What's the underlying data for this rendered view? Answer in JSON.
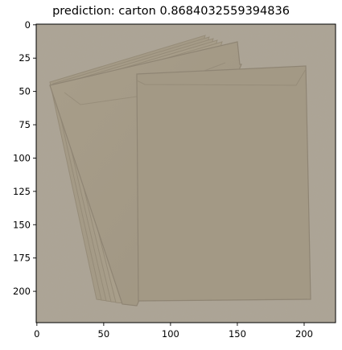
{
  "figure": {
    "title": "prediction: carton 0.8684032559394836",
    "prediction_label": "carton",
    "prediction_score": 0.8684032559394836
  },
  "image": {
    "subject": "stack of beige paper envelopes on a beige background",
    "width_data": 224,
    "height_data": 224,
    "colors": {
      "background": "#aca495",
      "envelope": "#a39985",
      "envelope_edge": "#8f8574"
    }
  },
  "axes": {
    "x_ticks": [
      0,
      50,
      100,
      150,
      200
    ],
    "y_ticks": [
      0,
      25,
      50,
      75,
      100,
      125,
      150,
      175,
      200
    ],
    "xlim": [
      -0.5,
      223.5
    ],
    "ylim": [
      223.5,
      -0.5
    ]
  }
}
